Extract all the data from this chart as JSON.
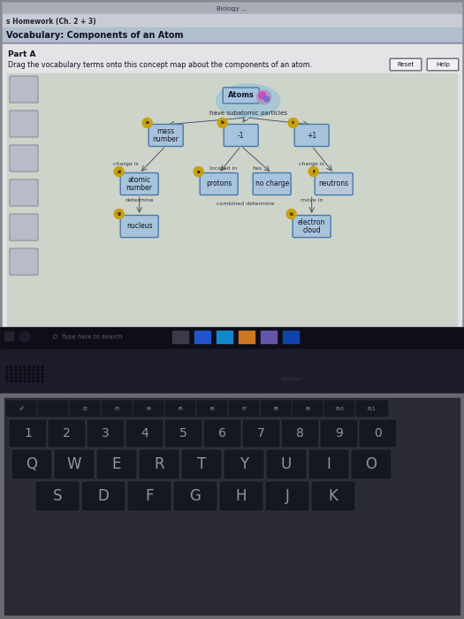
{
  "title_bar_text": "Biology ...",
  "breadcrumb": "s Homework (Ch. 2 + 3)",
  "page_title": "Vocabulary: Components of an Atom",
  "section": "Part A",
  "instruction": "Drag the vocabulary terms onto this concept map about the components of an atom.",
  "btn1": "Reset",
  "btn2": "Help",
  "bg_screen": "#c5c8ce",
  "bg_content": "#e6e6e8",
  "bg_map": "#cdd4ca",
  "node_fill": "#aec4dc",
  "node_border": "#6888a8",
  "circle_fill": "#c8a010",
  "sidebar_fill": "#b8bcc8",
  "taskbar_bg": "#111118",
  "keyboard_surround": "#888890",
  "keyboard_bg": "#454550",
  "key_fill": "#151c28",
  "key_border": "#3a4050",
  "key_text": "#b0b8b0",
  "laptop_body": "#1a1a22",
  "hinge_bg": "#1c1c28",
  "screen_border": "#888890",
  "fn_row_keys": [
    "z²",
    "",
    "f2",
    "f3",
    "f4",
    "f5",
    "f6",
    "f7",
    "f8",
    "f9",
    "f10",
    "f11"
  ],
  "num_row_keys": [
    "1",
    "2",
    "3",
    "4",
    "5",
    "6",
    "7",
    "8",
    "9",
    "0"
  ],
  "qwerty_row_keys": [
    "Q",
    "W",
    "E",
    "R",
    "T",
    "Y",
    "U",
    "I",
    "O"
  ],
  "bottom_row_keys": [
    "S",
    "D",
    "F",
    "G",
    "H",
    "J",
    "K"
  ]
}
